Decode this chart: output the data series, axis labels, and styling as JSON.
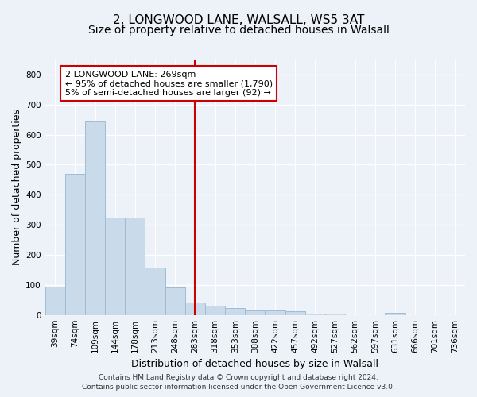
{
  "title1": "2, LONGWOOD LANE, WALSALL, WS5 3AT",
  "title2": "Size of property relative to detached houses in Walsall",
  "xlabel": "Distribution of detached houses by size in Walsall",
  "ylabel": "Number of detached properties",
  "bar_labels": [
    "39sqm",
    "74sqm",
    "109sqm",
    "144sqm",
    "178sqm",
    "213sqm",
    "248sqm",
    "283sqm",
    "318sqm",
    "353sqm",
    "388sqm",
    "422sqm",
    "457sqm",
    "492sqm",
    "527sqm",
    "562sqm",
    "597sqm",
    "631sqm",
    "666sqm",
    "701sqm",
    "736sqm"
  ],
  "bar_values": [
    95,
    470,
    645,
    325,
    325,
    158,
    92,
    42,
    30,
    22,
    15,
    15,
    12,
    5,
    5,
    0,
    0,
    8,
    0,
    0,
    0
  ],
  "bar_color": "#c9daea",
  "bar_edge_color": "#a0bcd4",
  "background_color": "#edf2f9",
  "grid_color": "#ffffff",
  "vline_x_idx": 7,
  "vline_color": "#cc0000",
  "annotation_text": "2 LONGWOOD LANE: 269sqm\n← 95% of detached houses are smaller (1,790)\n5% of semi-detached houses are larger (92) →",
  "annotation_box_color": "#ffffff",
  "annotation_box_edge": "#cc0000",
  "ylim": [
    0,
    850
  ],
  "yticks": [
    0,
    100,
    200,
    300,
    400,
    500,
    600,
    700,
    800
  ],
  "footnote": "Contains HM Land Registry data © Crown copyright and database right 2024.\nContains public sector information licensed under the Open Government Licence v3.0.",
  "title_fontsize": 11,
  "subtitle_fontsize": 10,
  "xlabel_fontsize": 9,
  "ylabel_fontsize": 9,
  "tick_fontsize": 7.5,
  "annot_fontsize": 8,
  "footnote_fontsize": 6.5
}
